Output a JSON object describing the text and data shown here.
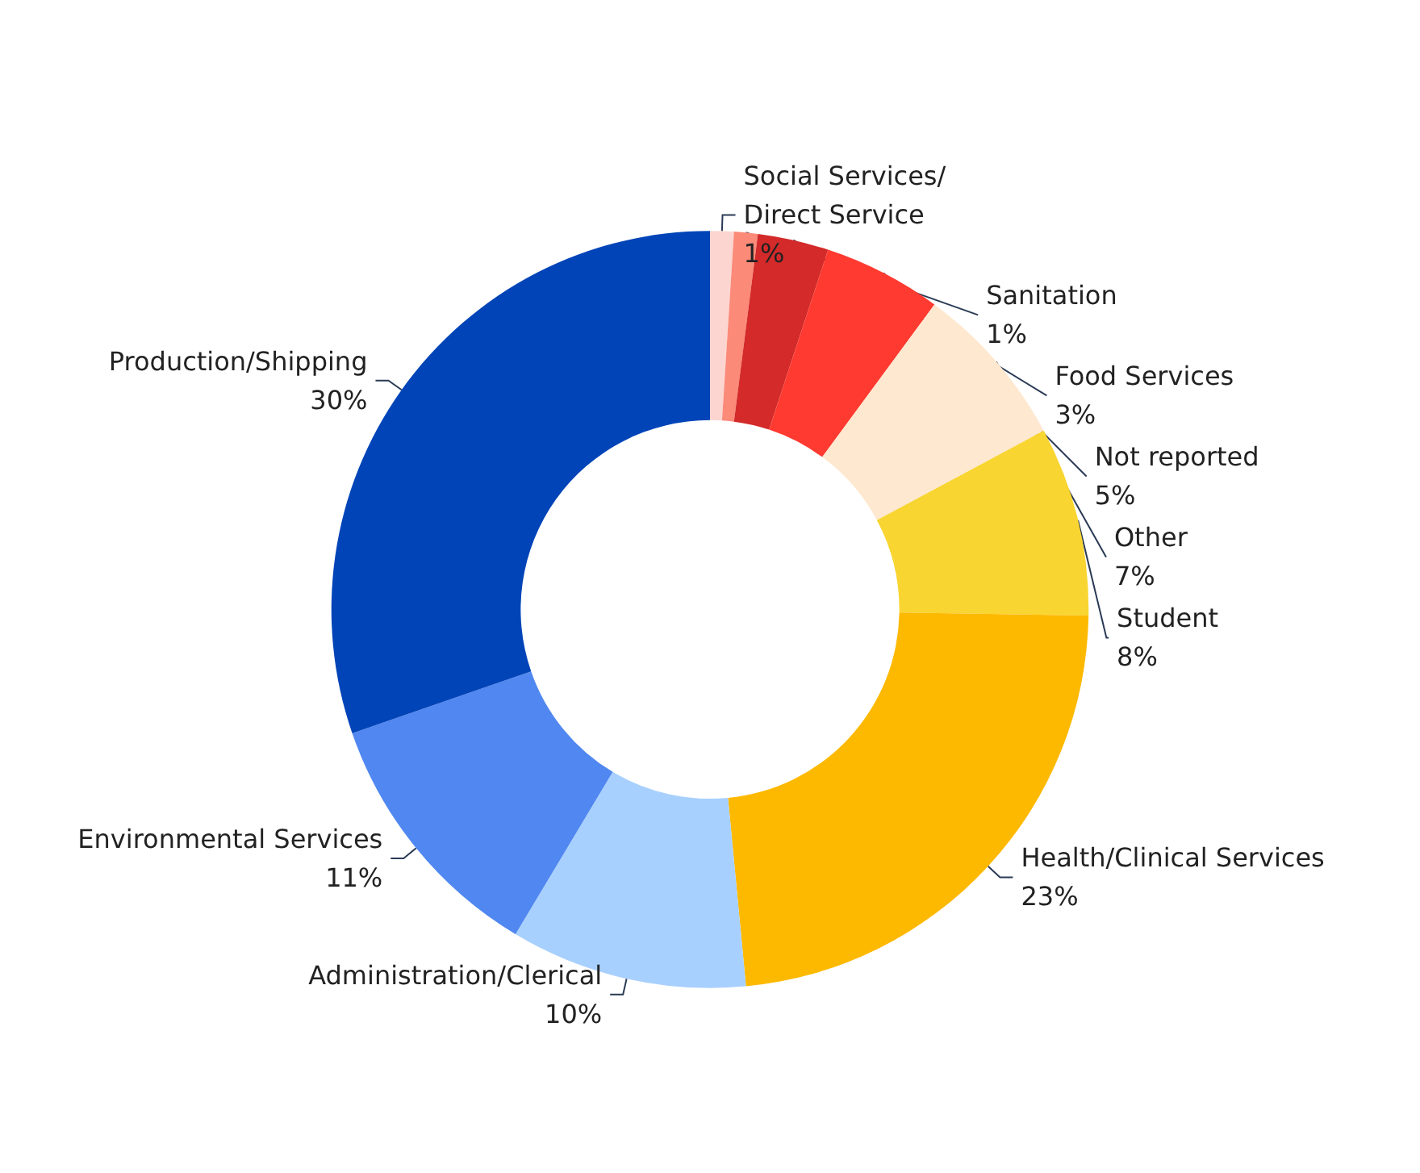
{
  "chart_data": {
    "type": "donut",
    "categories": [
      "Social Services/\nDirect Service",
      "Sanitation",
      "Food Services",
      "Not reported",
      "Other",
      "Student",
      "Health/Clinical Services",
      "Administration/Clerical",
      "Environmental Services",
      "Production/Shipping"
    ],
    "values": [
      1,
      1,
      3,
      5,
      7,
      8,
      23,
      10,
      11,
      30
    ],
    "colors": [
      "#fdd5d0",
      "#fb8a78",
      "#d42a2a",
      "#ff3a30",
      "#fee8d0",
      "#f8d530",
      "#fdb900",
      "#a8d0fe",
      "#5087f0",
      "#0044b8"
    ],
    "value_labels": [
      "1%",
      "1%",
      "3%",
      "5%",
      "7%",
      "8%",
      "23%",
      "10%",
      "11%",
      "30%"
    ],
    "legend": false
  }
}
